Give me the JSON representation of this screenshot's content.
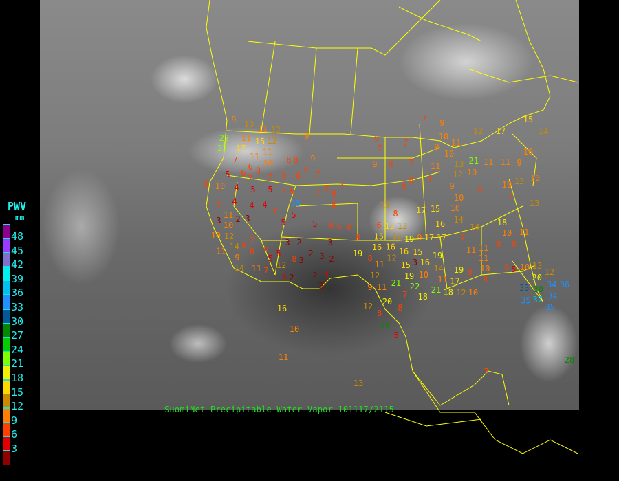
{
  "caption": "SuomiNet Precipitable Water Vapor 101117/2115",
  "legend": {
    "title": "PWV",
    "unit": "mm",
    "labels": [
      "48",
      "45",
      "42",
      "39",
      "36",
      "33",
      "30",
      "27",
      "24",
      "21",
      "18",
      "15",
      "12",
      "9",
      "6",
      "3"
    ],
    "colors": [
      "#8c008c",
      "#9a3cff",
      "#8070d0",
      "#00f0f0",
      "#00c0f0",
      "#1e90ff",
      "#005a9a",
      "#008a00",
      "#00d000",
      "#80ff00",
      "#f0f000",
      "#ffd700",
      "#c88a00",
      "#ff8000",
      "#ff4000",
      "#e00000",
      "#900000"
    ]
  },
  "border_color": "#ffff00",
  "stations": [
    9,
    13,
    11,
    12,
    22,
    23,
    11,
    15,
    12,
    11,
    17,
    9,
    7,
    11,
    6,
    6,
    10,
    8,
    7,
    7,
    8,
    6,
    8,
    8,
    9,
    6,
    7,
    5,
    8,
    10,
    4,
    5,
    5,
    7,
    6,
    7,
    6,
    6,
    7,
    8,
    4,
    4,
    4,
    7,
    5,
    5,
    5,
    6,
    6,
    6,
    3,
    7,
    11,
    2,
    3,
    10,
    12,
    10,
    14,
    6,
    7,
    8,
    11,
    9,
    6,
    5,
    5,
    3,
    2,
    3,
    2,
    3,
    3,
    2,
    8,
    12,
    14,
    11,
    7,
    5,
    2,
    2,
    4,
    3,
    8,
    6,
    7,
    9,
    6,
    7,
    7,
    12,
    17,
    15,
    14,
    10,
    9,
    11,
    10,
    13,
    12,
    11,
    7,
    9,
    8,
    8,
    8,
    7,
    10,
    21,
    11,
    11,
    9,
    10,
    10,
    13,
    10,
    7,
    8,
    9,
    10,
    10,
    13,
    13,
    8,
    17,
    15,
    14,
    15,
    15,
    12,
    13,
    16,
    18,
    10,
    11,
    7,
    14,
    11,
    11,
    11,
    10,
    8,
    8,
    9,
    17,
    17,
    16,
    19,
    16,
    12,
    16,
    15,
    3,
    19,
    8,
    11,
    15,
    16,
    19,
    14,
    11,
    10,
    19,
    8,
    8,
    8,
    5,
    10,
    13,
    19,
    22,
    21,
    12,
    11,
    9,
    7,
    18,
    21,
    18,
    17,
    12,
    10,
    20,
    12,
    8,
    8,
    20,
    12,
    30,
    33,
    34,
    34,
    36,
    37,
    35,
    35,
    30,
    5,
    16,
    10,
    11,
    13,
    7,
    28,
    35,
    6
  ]
}
